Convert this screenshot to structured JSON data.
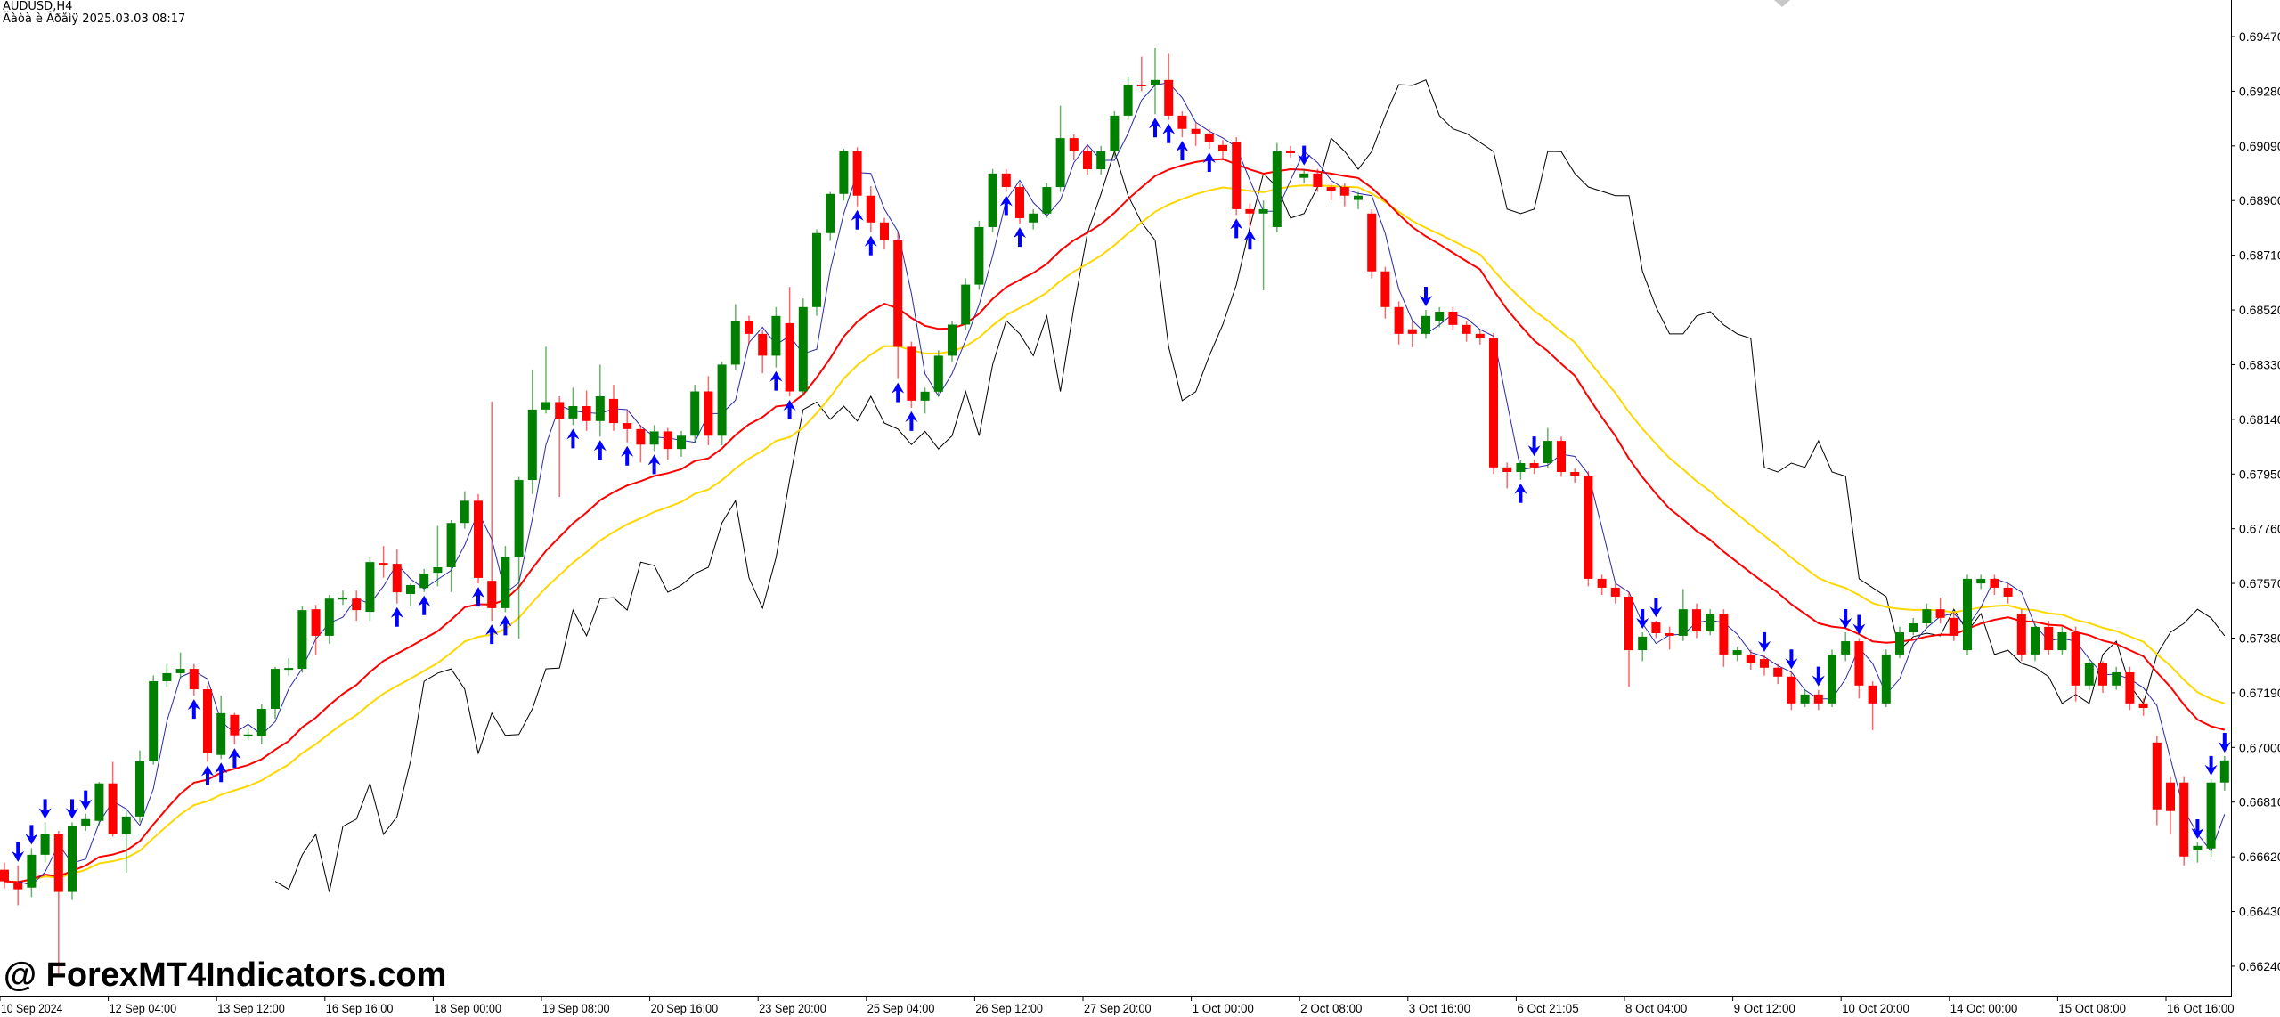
{
  "header": {
    "symbol": "AUDUSD,H4",
    "datetime_line": "Äàòà è Âðåìÿ 2025.03.03 08:17"
  },
  "watermark": "@ ForexMT4Indicators.com",
  "colors": {
    "bull": "#008000",
    "bear": "#ff0000",
    "ma_fast": "#ff0000",
    "ma_slow": "#ffd700",
    "blue_line": "#2a2aa8",
    "black_line": "#000000",
    "signal": "#0000ff"
  },
  "chart_data": {
    "type": "candlestick",
    "ylim": [
      0.6615,
      0.696
    ],
    "y_ticks": [
      "0.69470",
      "0.69280",
      "0.69090",
      "0.68900",
      "0.68710",
      "0.68520",
      "0.68330",
      "0.68140",
      "0.67950",
      "0.67760",
      "0.67570",
      "0.67380",
      "0.67190",
      "0.67000",
      "0.66810",
      "0.66620",
      "0.66430",
      "0.66240"
    ],
    "x_labels": [
      "10 Sep 2024",
      "12 Sep 04:00",
      "13 Sep 12:00",
      "16 Sep 16:00",
      "18 Sep 00:00",
      "19 Sep 08:00",
      "20 Sep 16:00",
      "23 Sep 20:00",
      "25 Sep 04:00",
      "26 Sep 12:00",
      "27 Sep 20:00",
      "1 Oct 00:00",
      "2 Oct 08:00",
      "3 Oct 16:00",
      "6 Oct 21:05",
      "8 Oct 04:00",
      "9 Oct 12:00",
      "10 Oct 20:00",
      "14 Oct 00:00",
      "15 Oct 08:00",
      "16 Oct 16:00"
    ],
    "ohlc": [
      [
        0.66575,
        0.666,
        0.6651,
        0.66535
      ],
      [
        0.66529,
        0.6659,
        0.66452,
        0.66507
      ],
      [
        0.66513,
        0.6665,
        0.6648,
        0.66627
      ],
      [
        0.66627,
        0.6674,
        0.666,
        0.66698
      ],
      [
        0.66698,
        0.6671,
        0.66215,
        0.66498
      ],
      [
        0.66498,
        0.6674,
        0.6647,
        0.66726
      ],
      [
        0.66726,
        0.6677,
        0.6671,
        0.66751
      ],
      [
        0.66745,
        0.6688,
        0.6673,
        0.66875
      ],
      [
        0.66875,
        0.6695,
        0.6669,
        0.66698
      ],
      [
        0.66698,
        0.6678,
        0.66565,
        0.6676
      ],
      [
        0.6676,
        0.6699,
        0.6674,
        0.66952
      ],
      [
        0.66952,
        0.6725,
        0.6694,
        0.6723
      ],
      [
        0.6723,
        0.6729,
        0.6721,
        0.67258
      ],
      [
        0.67258,
        0.6733,
        0.6724,
        0.67273
      ],
      [
        0.67273,
        0.6729,
        0.6718,
        0.67202
      ],
      [
        0.67202,
        0.67215,
        0.6695,
        0.6698
      ],
      [
        0.66974,
        0.6718,
        0.6696,
        0.67119
      ],
      [
        0.67113,
        0.6712,
        0.6701,
        0.67042
      ],
      [
        0.67042,
        0.67065,
        0.67025,
        0.67045
      ],
      [
        0.67039,
        0.6715,
        0.6701,
        0.67134
      ],
      [
        0.67134,
        0.6728,
        0.671,
        0.67273
      ],
      [
        0.67273,
        0.6731,
        0.6725,
        0.67276
      ],
      [
        0.67273,
        0.6749,
        0.6726,
        0.67477
      ],
      [
        0.6748,
        0.67495,
        0.6732,
        0.67388
      ],
      [
        0.67388,
        0.6753,
        0.6736,
        0.67517
      ],
      [
        0.67517,
        0.67545,
        0.67495,
        0.6752
      ],
      [
        0.67517,
        0.67545,
        0.6744,
        0.67477
      ],
      [
        0.67471,
        0.6766,
        0.6744,
        0.67644
      ],
      [
        0.67641,
        0.677,
        0.6759,
        0.67632
      ],
      [
        0.67638,
        0.6769,
        0.675,
        0.67539
      ],
      [
        0.67533,
        0.6757,
        0.6749,
        0.67564
      ],
      [
        0.67554,
        0.6762,
        0.6754,
        0.67604
      ],
      [
        0.67607,
        0.6777,
        0.6756,
        0.67626
      ],
      [
        0.67626,
        0.6779,
        0.6754,
        0.6778
      ],
      [
        0.6778,
        0.6789,
        0.6776,
        0.67857
      ],
      [
        0.67857,
        0.6788,
        0.6757,
        0.67589
      ],
      [
        0.67579,
        0.68202,
        0.6744,
        0.67484
      ],
      [
        0.67484,
        0.677,
        0.6747,
        0.6766
      ],
      [
        0.6766,
        0.6794,
        0.67378,
        0.67929
      ],
      [
        0.67929,
        0.6831,
        0.6788,
        0.68174
      ],
      [
        0.68174,
        0.68392,
        0.6816,
        0.682
      ],
      [
        0.682,
        0.6822,
        0.6787,
        0.6814
      ],
      [
        0.68143,
        0.6825,
        0.6812,
        0.68186
      ],
      [
        0.68186,
        0.6824,
        0.681,
        0.68134
      ],
      [
        0.68134,
        0.6833,
        0.6808,
        0.6822
      ],
      [
        0.68211,
        0.6826,
        0.681,
        0.68127
      ],
      [
        0.68127,
        0.6817,
        0.6806,
        0.68106
      ],
      [
        0.68106,
        0.6812,
        0.6799,
        0.68052
      ],
      [
        0.68052,
        0.6812,
        0.6803,
        0.68098
      ],
      [
        0.68098,
        0.6811,
        0.68,
        0.68037
      ],
      [
        0.68037,
        0.681,
        0.6801,
        0.68083
      ],
      [
        0.68083,
        0.6826,
        0.6806,
        0.68237
      ],
      [
        0.68237,
        0.6829,
        0.6805,
        0.68083
      ],
      [
        0.68083,
        0.6834,
        0.6805,
        0.6833
      ],
      [
        0.6833,
        0.6854,
        0.6831,
        0.68483
      ],
      [
        0.68483,
        0.685,
        0.684,
        0.68437
      ],
      [
        0.68437,
        0.6845,
        0.683,
        0.68361
      ],
      [
        0.68361,
        0.6853,
        0.6832,
        0.68499
      ],
      [
        0.68474,
        0.686,
        0.6822,
        0.68237
      ],
      [
        0.68237,
        0.6856,
        0.6822,
        0.6853
      ],
      [
        0.6853,
        0.688,
        0.685,
        0.68787
      ],
      [
        0.68787,
        0.6893,
        0.6876,
        0.68923
      ],
      [
        0.68923,
        0.6908,
        0.689,
        0.69072
      ],
      [
        0.69072,
        0.69085,
        0.6888,
        0.68917
      ],
      [
        0.68917,
        0.6895,
        0.6879,
        0.68824
      ],
      [
        0.68824,
        0.6884,
        0.6873,
        0.68762
      ],
      [
        0.68762,
        0.6879,
        0.6828,
        0.68392
      ],
      [
        0.68392,
        0.6841,
        0.6818,
        0.68205
      ],
      [
        0.68205,
        0.6825,
        0.6816,
        0.68236
      ],
      [
        0.68236,
        0.6838,
        0.6822,
        0.68361
      ],
      [
        0.68361,
        0.6848,
        0.6834,
        0.68469
      ],
      [
        0.68469,
        0.6863,
        0.6845,
        0.68608
      ],
      [
        0.68608,
        0.6883,
        0.6859,
        0.68808
      ],
      [
        0.68808,
        0.6901,
        0.6879,
        0.68994
      ],
      [
        0.68994,
        0.6901,
        0.6893,
        0.68947
      ],
      [
        0.68947,
        0.6896,
        0.6882,
        0.68839
      ],
      [
        0.68824,
        0.6887,
        0.688,
        0.68855
      ],
      [
        0.68855,
        0.6896,
        0.6884,
        0.68947
      ],
      [
        0.68947,
        0.6923,
        0.6893,
        0.69117
      ],
      [
        0.69117,
        0.6913,
        0.6904,
        0.69071
      ],
      [
        0.69071,
        0.6909,
        0.6899,
        0.69009
      ],
      [
        0.69009,
        0.6909,
        0.6899,
        0.69071
      ],
      [
        0.69071,
        0.6921,
        0.6905,
        0.69195
      ],
      [
        0.69195,
        0.6933,
        0.6918,
        0.69303
      ],
      [
        0.69303,
        0.694,
        0.6928,
        0.693
      ],
      [
        0.69303,
        0.6943,
        0.692,
        0.69319
      ],
      [
        0.69319,
        0.6941,
        0.6918,
        0.69195
      ],
      [
        0.69195,
        0.6921,
        0.6912,
        0.69149
      ],
      [
        0.69149,
        0.6917,
        0.6909,
        0.69133
      ],
      [
        0.69133,
        0.6915,
        0.6908,
        0.69102
      ],
      [
        0.69093,
        0.6911,
        0.6904,
        0.69071
      ],
      [
        0.69102,
        0.6912,
        0.6885,
        0.6887
      ],
      [
        0.6887,
        0.6889,
        0.6881,
        0.68855
      ],
      [
        0.68855,
        0.689,
        0.68588,
        0.6887
      ],
      [
        0.68808,
        0.691,
        0.6879,
        0.69071
      ],
      [
        0.69071,
        0.6909,
        0.6905,
        0.6907
      ],
      [
        0.68979,
        0.6901,
        0.6896,
        0.68994
      ],
      [
        0.68994,
        0.6901,
        0.6893,
        0.68947
      ],
      [
        0.68947,
        0.6896,
        0.689,
        0.68932
      ],
      [
        0.68947,
        0.6896,
        0.6888,
        0.68917
      ],
      [
        0.68902,
        0.6893,
        0.6887,
        0.68917
      ],
      [
        0.68855,
        0.6887,
        0.6863,
        0.68654
      ],
      [
        0.68654,
        0.6867,
        0.6849,
        0.6853
      ],
      [
        0.6853,
        0.6855,
        0.684,
        0.68437
      ],
      [
        0.68453,
        0.6848,
        0.6839,
        0.68437
      ],
      [
        0.68437,
        0.6852,
        0.6842,
        0.68499
      ],
      [
        0.68483,
        0.6853,
        0.6846,
        0.68514
      ],
      [
        0.68514,
        0.6853,
        0.6845,
        0.68468
      ],
      [
        0.68468,
        0.6848,
        0.6841,
        0.68437
      ],
      [
        0.68437,
        0.6845,
        0.684,
        0.68421
      ],
      [
        0.68421,
        0.6844,
        0.6795,
        0.67973
      ],
      [
        0.67973,
        0.6799,
        0.679,
        0.67957
      ],
      [
        0.67957,
        0.68,
        0.6793,
        0.67988
      ],
      [
        0.67988,
        0.68,
        0.6795,
        0.67973
      ],
      [
        0.67988,
        0.6811,
        0.6797,
        0.68065
      ],
      [
        0.68065,
        0.6808,
        0.6794,
        0.67957
      ],
      [
        0.67957,
        0.6797,
        0.6792,
        0.67942
      ],
      [
        0.67942,
        0.6796,
        0.6756,
        0.67586
      ],
      [
        0.67586,
        0.676,
        0.6753,
        0.67555
      ],
      [
        0.67555,
        0.6757,
        0.675,
        0.67524
      ],
      [
        0.67524,
        0.6754,
        0.6721,
        0.67338
      ],
      [
        0.67338,
        0.674,
        0.673,
        0.67385
      ],
      [
        0.67434,
        0.6744,
        0.6738,
        0.67397
      ],
      [
        0.67397,
        0.6742,
        0.6734,
        0.67388
      ],
      [
        0.67388,
        0.6755,
        0.6737,
        0.6748
      ],
      [
        0.6748,
        0.675,
        0.6738,
        0.67403
      ],
      [
        0.67403,
        0.6748,
        0.6739,
        0.67465
      ],
      [
        0.67465,
        0.6748,
        0.6728,
        0.67323
      ],
      [
        0.67323,
        0.6735,
        0.673,
        0.67338
      ],
      [
        0.67323,
        0.6734,
        0.6727,
        0.67292
      ],
      [
        0.67307,
        0.6732,
        0.6725,
        0.67277
      ],
      [
        0.67277,
        0.6729,
        0.6722,
        0.67246
      ],
      [
        0.67246,
        0.6726,
        0.6713,
        0.67153
      ],
      [
        0.67153,
        0.672,
        0.6714,
        0.67184
      ],
      [
        0.67184,
        0.672,
        0.6713,
        0.67153
      ],
      [
        0.67153,
        0.6734,
        0.6714,
        0.67323
      ],
      [
        0.67323,
        0.674,
        0.673,
        0.67369
      ],
      [
        0.67369,
        0.6738,
        0.6717,
        0.67215
      ],
      [
        0.67215,
        0.6723,
        0.6706,
        0.67153
      ],
      [
        0.67153,
        0.6734,
        0.6714,
        0.67323
      ],
      [
        0.67323,
        0.6742,
        0.6731,
        0.674
      ],
      [
        0.674,
        0.6745,
        0.6739,
        0.67431
      ],
      [
        0.67431,
        0.675,
        0.6742,
        0.6748
      ],
      [
        0.6748,
        0.6752,
        0.6743,
        0.6745
      ],
      [
        0.6745,
        0.6747,
        0.6737,
        0.67388
      ],
      [
        0.67338,
        0.676,
        0.6732,
        0.67586
      ],
      [
        0.6757,
        0.676,
        0.6755,
        0.67586
      ],
      [
        0.67586,
        0.676,
        0.6753,
        0.67555
      ],
      [
        0.67555,
        0.6757,
        0.675,
        0.67524
      ],
      [
        0.67465,
        0.6748,
        0.673,
        0.67323
      ],
      [
        0.67323,
        0.6743,
        0.673,
        0.67419
      ],
      [
        0.67419,
        0.6744,
        0.6732,
        0.67338
      ],
      [
        0.67338,
        0.6742,
        0.6732,
        0.674
      ],
      [
        0.674,
        0.6742,
        0.6716,
        0.67215
      ],
      [
        0.67215,
        0.6731,
        0.672,
        0.67292
      ],
      [
        0.67292,
        0.673,
        0.6719,
        0.67215
      ],
      [
        0.67215,
        0.6728,
        0.672,
        0.67261
      ],
      [
        0.67261,
        0.6728,
        0.6713,
        0.67153
      ],
      [
        0.67153,
        0.6717,
        0.6711,
        0.67137
      ],
      [
        0.67017,
        0.6704,
        0.6673,
        0.66785
      ],
      [
        0.66878,
        0.669,
        0.667,
        0.66779
      ],
      [
        0.66878,
        0.669,
        0.6659,
        0.66621
      ],
      [
        0.66642,
        0.6667,
        0.666,
        0.66658
      ],
      [
        0.66649,
        0.6689,
        0.6662,
        0.66878
      ],
      [
        0.66878,
        0.6697,
        0.6685,
        0.66955
      ]
    ],
    "signals": [
      {
        "i": 1,
        "dir": "down"
      },
      {
        "i": 2,
        "dir": "down"
      },
      {
        "i": 3,
        "dir": "down"
      },
      {
        "i": 5,
        "dir": "down"
      },
      {
        "i": 6,
        "dir": "down"
      },
      {
        "i": 14,
        "dir": "up"
      },
      {
        "i": 15,
        "dir": "up"
      },
      {
        "i": 16,
        "dir": "up"
      },
      {
        "i": 17,
        "dir": "up"
      },
      {
        "i": 29,
        "dir": "up"
      },
      {
        "i": 31,
        "dir": "up"
      },
      {
        "i": 35,
        "dir": "up"
      },
      {
        "i": 36,
        "dir": "up"
      },
      {
        "i": 37,
        "dir": "up"
      },
      {
        "i": 42,
        "dir": "up"
      },
      {
        "i": 44,
        "dir": "up"
      },
      {
        "i": 46,
        "dir": "up"
      },
      {
        "i": 48,
        "dir": "up"
      },
      {
        "i": 57,
        "dir": "up"
      },
      {
        "i": 58,
        "dir": "up"
      },
      {
        "i": 63,
        "dir": "up"
      },
      {
        "i": 64,
        "dir": "up"
      },
      {
        "i": 66,
        "dir": "up"
      },
      {
        "i": 67,
        "dir": "up"
      },
      {
        "i": 74,
        "dir": "up"
      },
      {
        "i": 75,
        "dir": "up"
      },
      {
        "i": 85,
        "dir": "up"
      },
      {
        "i": 86,
        "dir": "up"
      },
      {
        "i": 87,
        "dir": "up"
      },
      {
        "i": 89,
        "dir": "up"
      },
      {
        "i": 91,
        "dir": "up"
      },
      {
        "i": 92,
        "dir": "up"
      },
      {
        "i": 96,
        "dir": "down"
      },
      {
        "i": 105,
        "dir": "down"
      },
      {
        "i": 112,
        "dir": "up"
      },
      {
        "i": 113,
        "dir": "down"
      },
      {
        "i": 121,
        "dir": "down"
      },
      {
        "i": 122,
        "dir": "down"
      },
      {
        "i": 130,
        "dir": "down"
      },
      {
        "i": 132,
        "dir": "down"
      },
      {
        "i": 134,
        "dir": "down"
      },
      {
        "i": 136,
        "dir": "down"
      },
      {
        "i": 137,
        "dir": "down"
      },
      {
        "i": 162,
        "dir": "down"
      },
      {
        "i": 163,
        "dir": "down"
      },
      {
        "i": 164,
        "dir": "down"
      }
    ]
  }
}
